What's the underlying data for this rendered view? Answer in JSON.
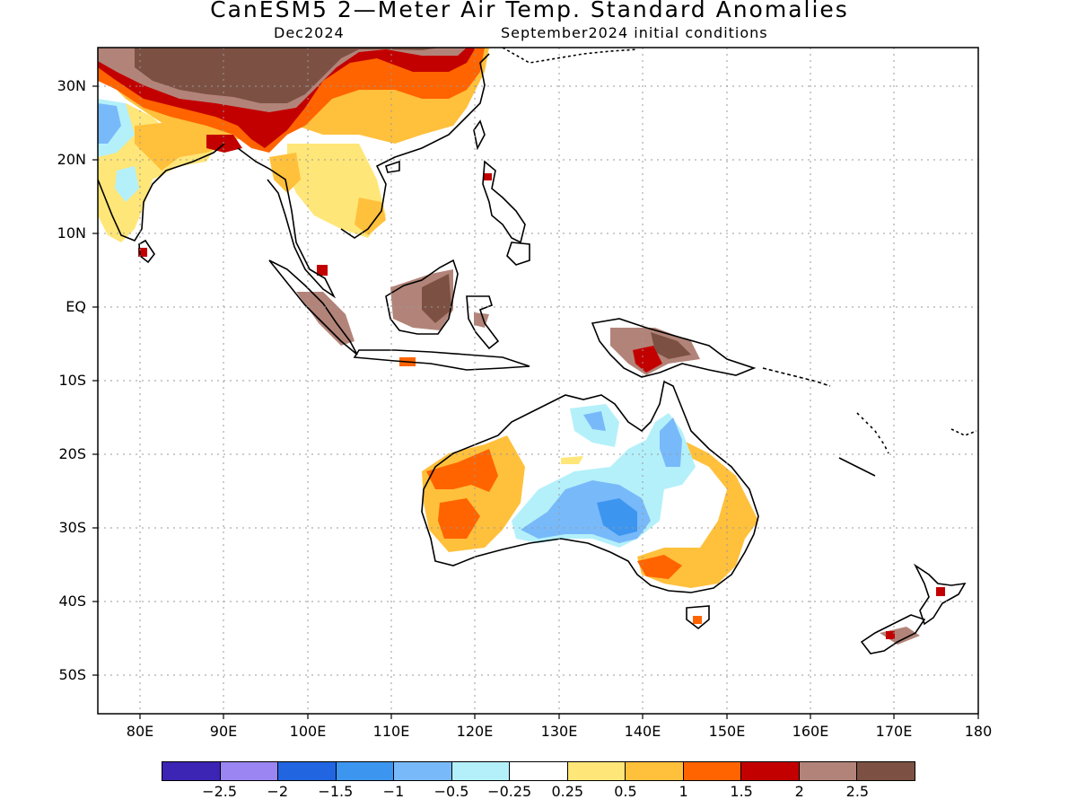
{
  "title": "CanESM5 2—Meter Air Temp. Standard Anomalies",
  "subtitle_left": "Dec2024",
  "subtitle_right": "September2024 initial conditions",
  "map": {
    "lon_range": [
      75,
      180
    ],
    "lat_range": [
      -55,
      35
    ],
    "gridlines": "dotted",
    "lat_labels": [
      "30N",
      "20N",
      "10N",
      "EQ",
      "10S",
      "20S",
      "30S",
      "40S",
      "50S"
    ],
    "lon_labels": [
      "80E",
      "90E",
      "100E",
      "110E",
      "120E",
      "130E",
      "140E",
      "150E",
      "160E",
      "170E",
      "180"
    ]
  },
  "colorbar": {
    "colors": [
      "#3c24b4",
      "#9a85f2",
      "#2165e1",
      "#3c96f0",
      "#78b9fa",
      "#b4f0fa",
      "#ffffff",
      "#ffe678",
      "#ffc03c",
      "#ff6400",
      "#c30000",
      "#b28479",
      "#7c5143"
    ],
    "labels": [
      "-2.5",
      "-2",
      "-1.5",
      "-1",
      "-0.5",
      "-0.25",
      "0.25",
      "0.5",
      "1",
      "1.5",
      "2",
      "2.5"
    ]
  },
  "anomaly_regions": [
    {
      "region": "Tibetan Plateau / western China",
      "category": "above 2.5"
    },
    {
      "region": "southern China",
      "category": "0.5 to 1.5"
    },
    {
      "region": "northeastern India / Bangladesh",
      "category": "1.5 to 2.5"
    },
    {
      "region": "western India",
      "category": "-1 to -0.25"
    },
    {
      "region": "Borneo",
      "category": "above 2"
    },
    {
      "region": "Sumatra",
      "category": "above 2"
    },
    {
      "region": "New Guinea",
      "category": "1.5 to 2.5"
    },
    {
      "region": "western Australia",
      "category": "0.5 to 1.5"
    },
    {
      "region": "central Australia",
      "category": "-1.5 to -0.25"
    },
    {
      "region": "southeastern Australia",
      "category": "0.5 to 1.5"
    },
    {
      "region": "eastern Australia coast",
      "category": "0.5 to 2"
    }
  ]
}
